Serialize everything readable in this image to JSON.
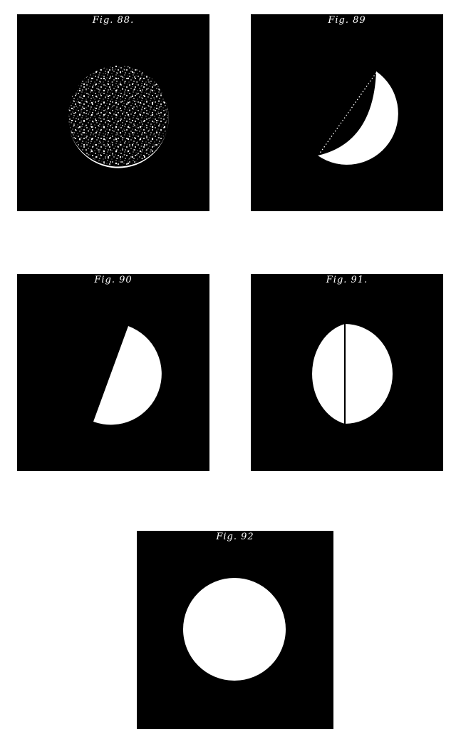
{
  "figures": [
    {
      "id": "fig-88",
      "caption": "Fig. 88."
    },
    {
      "id": "fig-89",
      "caption": "Fig. 89"
    },
    {
      "id": "fig-90",
      "caption": "Fig. 90"
    },
    {
      "id": "fig-91",
      "caption": "Fig. 91."
    },
    {
      "id": "fig-92",
      "caption": "Fig. 92"
    }
  ],
  "colors": {
    "background": "#000000",
    "lit": "#ffffff",
    "page": "#ffffff"
  }
}
